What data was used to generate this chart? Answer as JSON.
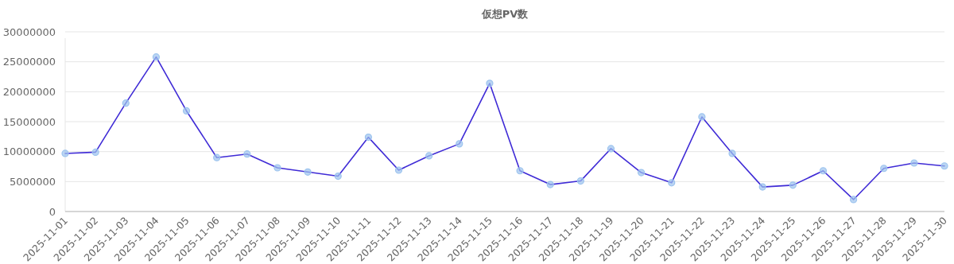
{
  "chart_data": {
    "type": "line",
    "title": "仮想PV数",
    "categories": [
      "2025-11-01",
      "2025-11-02",
      "2025-11-03",
      "2025-11-04",
      "2025-11-05",
      "2025-11-06",
      "2025-11-07",
      "2025-11-08",
      "2025-11-09",
      "2025-11-10",
      "2025-11-11",
      "2025-11-12",
      "2025-11-13",
      "2025-11-14",
      "2025-11-15",
      "2025-11-16",
      "2025-11-17",
      "2025-11-18",
      "2025-11-19",
      "2025-11-20",
      "2025-11-21",
      "2025-11-22",
      "2025-11-23",
      "2025-11-24",
      "2025-11-25",
      "2025-11-26",
      "2025-11-27",
      "2025-11-28",
      "2025-11-29",
      "2025-11-30"
    ],
    "series": [
      {
        "color": "#3f2bd6",
        "values": [
          9700000,
          9900000,
          18100000,
          25800000,
          16800000,
          9000000,
          9600000,
          7300000,
          6600000,
          5900000,
          12400000,
          6900000,
          9300000,
          11300000,
          21400000,
          6800000,
          4500000,
          5100000,
          10500000,
          6500000,
          4800000,
          15800000,
          9700000,
          4100000,
          4400000,
          6800000,
          2000000,
          7200000,
          8100000,
          7600000
        ]
      }
    ],
    "ylim": [
      0,
      30000000
    ],
    "yticks": [
      0,
      5000000,
      10000000,
      15000000,
      20000000,
      25000000,
      30000000
    ],
    "grid": "y",
    "marker": "circle",
    "line_style": "solid"
  }
}
